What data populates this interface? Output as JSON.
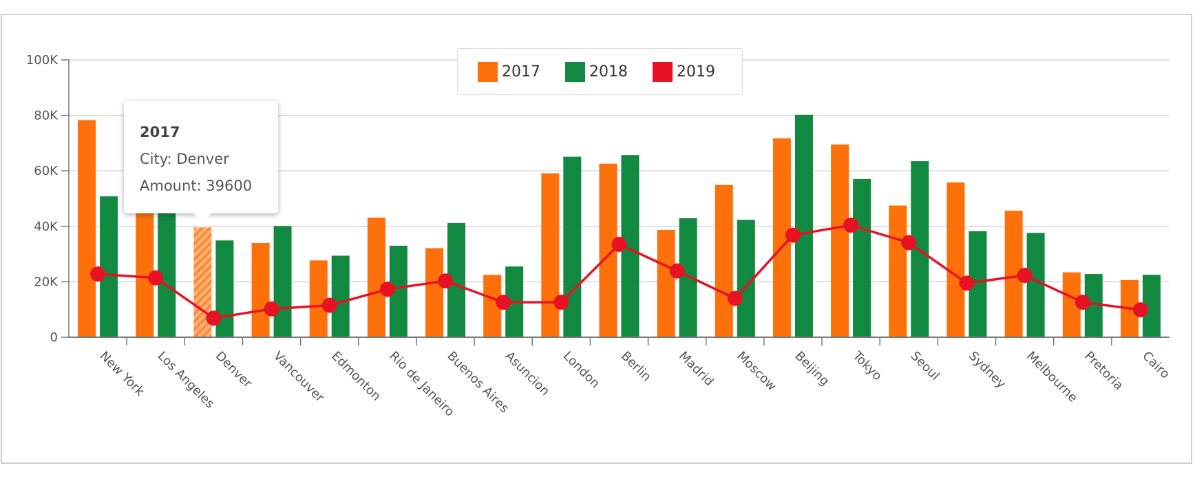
{
  "chart_data": {
    "type": "bar",
    "categories": [
      "New York",
      "Los Angeles",
      "Denver",
      "Vancouver",
      "Edmonton",
      "Rio de Janeiro",
      "Buenos Aires",
      "Asuncion",
      "London",
      "Berlin",
      "Madrid",
      "Moscow",
      "Beijing",
      "Tokyo",
      "Seoul",
      "Sydney",
      "Melbourne",
      "Pretoria",
      "Cairo"
    ],
    "series": [
      {
        "name": "2017",
        "kind": "bar",
        "color": "#fd700a",
        "values": [
          78300,
          52000,
          39600,
          34000,
          27700,
          43100,
          32100,
          22500,
          59100,
          62600,
          38700,
          54900,
          71700,
          69500,
          47500,
          55800,
          45600,
          23400,
          20600
        ]
      },
      {
        "name": "2018",
        "kind": "bar",
        "color": "#128940",
        "values": [
          50800,
          48000,
          34900,
          40100,
          29400,
          33000,
          41200,
          25500,
          65100,
          65700,
          42900,
          42300,
          80200,
          57100,
          63500,
          38200,
          37600,
          22800,
          22500
        ]
      },
      {
        "name": "2019",
        "kind": "line",
        "color": "#e81225",
        "values": [
          22800,
          21400,
          6900,
          10200,
          11500,
          17300,
          20300,
          12600,
          12600,
          33500,
          23900,
          14000,
          36800,
          40400,
          34100,
          19500,
          22300,
          12600,
          9900
        ]
      }
    ],
    "ylim": [
      0,
      100000
    ],
    "yticks": [
      {
        "v": 0,
        "label": "0"
      },
      {
        "v": 20000,
        "label": "20K"
      },
      {
        "v": 40000,
        "label": "40K"
      },
      {
        "v": 60000,
        "label": "60K"
      },
      {
        "v": 80000,
        "label": "80K"
      },
      {
        "v": 100000,
        "label": "100K"
      }
    ],
    "grid": true,
    "legend_position": "top-center",
    "highlighted": {
      "series": "2017",
      "category": "Denver"
    }
  },
  "legend": [
    {
      "label": "2017",
      "color": "#fd700a"
    },
    {
      "label": "2018",
      "color": "#128940"
    },
    {
      "label": "2019",
      "color": "#e81225"
    }
  ],
  "tooltip": {
    "title": "2017",
    "city_line": "City: Denver",
    "amount_line": "Amount: 39600"
  }
}
